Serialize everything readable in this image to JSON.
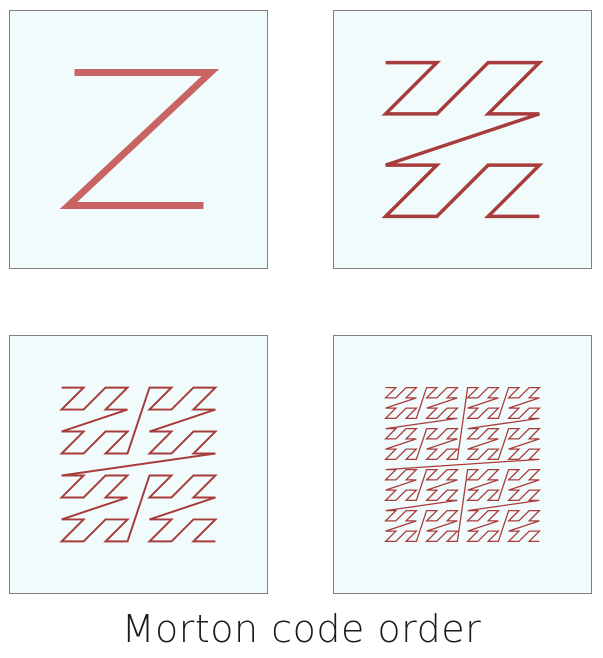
{
  "caption": "Morton code order",
  "colors": {
    "curve_level_1": "#c86464",
    "curve_other": "#a83c3c",
    "panel_fill": "#f2fbfb",
    "panel_border": "#7f7f7f"
  },
  "panels": [
    {
      "name": "order-1",
      "level": 1
    },
    {
      "name": "order-2",
      "level": 2
    },
    {
      "name": "order-3",
      "level": 3
    },
    {
      "name": "order-4",
      "level": 4
    }
  ]
}
